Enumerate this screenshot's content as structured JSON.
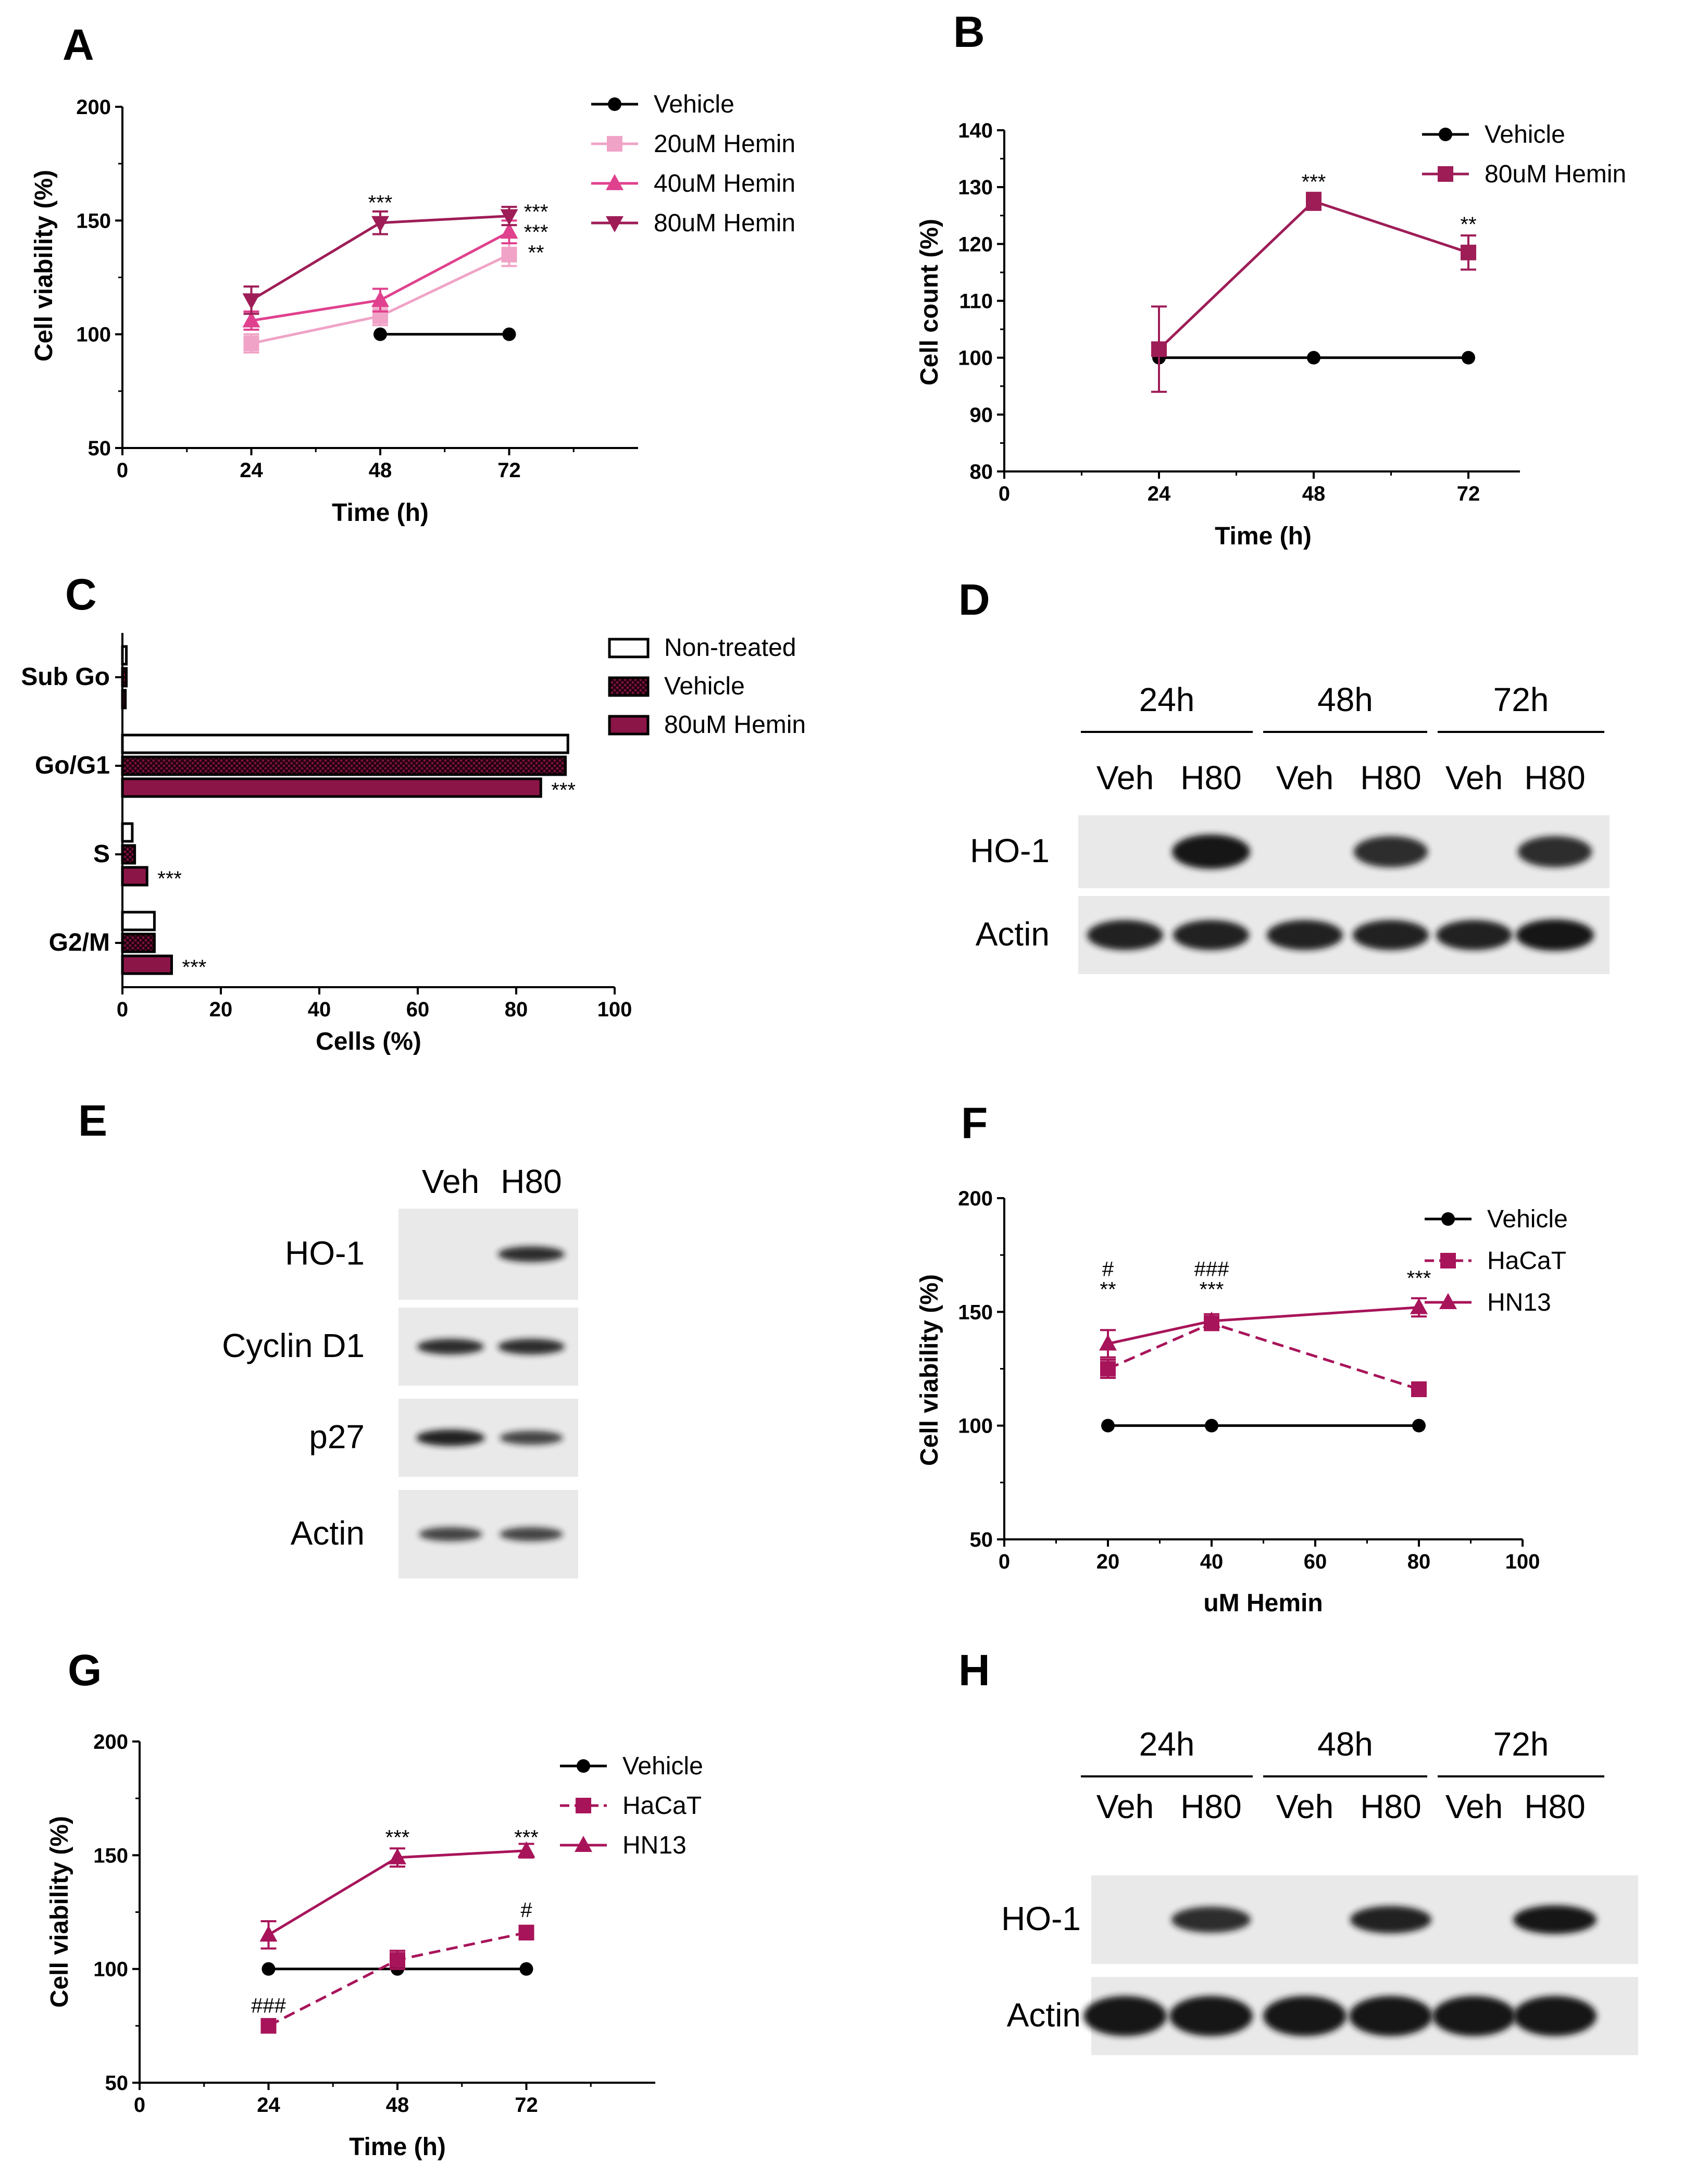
{
  "figure": {
    "panel_labels": [
      "A",
      "B",
      "C",
      "D",
      "E",
      "F",
      "G",
      "H"
    ]
  },
  "colors": {
    "vehicle": "#000000",
    "hemin_20": "#f0a3c6",
    "hemin_40": "#e0418e",
    "hemin_80": "#9e1d57",
    "hacat": "#a8145a",
    "hn13": "#a8145a",
    "blot_band": "#141414"
  },
  "chart_data": [
    {
      "panel": "A",
      "type": "line",
      "title": "",
      "xlabel": "Time (h)",
      "ylabel": "Cell viability (%)",
      "xlim": [
        0,
        96
      ],
      "ylim": [
        50,
        200
      ],
      "xticks": [
        0,
        24,
        48,
        72
      ],
      "yticks": [
        50,
        100,
        150,
        200
      ],
      "legend_position": "top-right",
      "series": [
        {
          "name": "Vehicle",
          "marker": "circle",
          "color": "#000000",
          "dashed": false,
          "x": [
            48,
            72
          ],
          "y": [
            100,
            100
          ],
          "err": [
            0,
            0
          ]
        },
        {
          "name": "20uM Hemin",
          "marker": "square",
          "color": "#f0a3c6",
          "dashed": false,
          "x": [
            24,
            48,
            72
          ],
          "y": [
            96,
            108,
            135
          ],
          "err": [
            4,
            4,
            5
          ]
        },
        {
          "name": "40uM Hemin",
          "marker": "triangle-up",
          "color": "#e0418e",
          "dashed": false,
          "x": [
            24,
            48,
            72
          ],
          "y": [
            106,
            115,
            145
          ],
          "err": [
            4,
            5,
            5
          ]
        },
        {
          "name": "80uM Hemin",
          "marker": "triangle-down",
          "color": "#9e1d57",
          "dashed": false,
          "x": [
            24,
            48,
            72
          ],
          "y": [
            115,
            149,
            152
          ],
          "err": [
            6,
            5,
            4
          ]
        }
      ],
      "annotations": [
        {
          "x": 48,
          "y": 158,
          "text": "***"
        },
        {
          "x": 77,
          "y": 154,
          "text": "***"
        },
        {
          "x": 77,
          "y": 145,
          "text": "***"
        },
        {
          "x": 77,
          "y": 136,
          "text": "**"
        }
      ]
    },
    {
      "panel": "B",
      "type": "line",
      "title": "",
      "xlabel": "Time (h)",
      "ylabel": "Cell count (%)",
      "xlim": [
        0,
        80
      ],
      "ylim": [
        80,
        140
      ],
      "xticks": [
        0,
        24,
        48,
        72
      ],
      "yticks": [
        80,
        90,
        100,
        110,
        120,
        130,
        140
      ],
      "legend_position": "top-right",
      "series": [
        {
          "name": "Vehicle",
          "marker": "circle",
          "color": "#000000",
          "dashed": false,
          "x": [
            24,
            48,
            72
          ],
          "y": [
            100,
            100,
            100
          ],
          "err": [
            0,
            0,
            0
          ]
        },
        {
          "name": "80uM Hemin",
          "marker": "square",
          "color": "#9e1d57",
          "dashed": false,
          "x": [
            24,
            48,
            72
          ],
          "y": [
            101.5,
            127.5,
            118.5
          ],
          "err": [
            7.5,
            1.5,
            3
          ]
        }
      ],
      "annotations": [
        {
          "x": 48,
          "y": 131,
          "text": "***"
        },
        {
          "x": 72,
          "y": 123.5,
          "text": "**"
        }
      ]
    },
    {
      "panel": "C",
      "type": "bar",
      "orientation": "horizontal",
      "title": "",
      "xlabel": "Cells (%)",
      "ylabel": "",
      "xlim": [
        0,
        100
      ],
      "xticks": [
        0,
        20,
        40,
        60,
        80,
        100
      ],
      "categories": [
        "Sub Go",
        "Go/G1",
        "S",
        "G2/M"
      ],
      "legend_position": "top-right",
      "series": [
        {
          "name": "Non-treated",
          "pattern": "white",
          "values": [
            0.8,
            90.5,
            2.0,
            6.5
          ]
        },
        {
          "name": "Vehicle",
          "pattern": "crosshatch",
          "values": [
            0.8,
            90.0,
            2.5,
            6.5
          ]
        },
        {
          "name": "80uM Hemin",
          "pattern": "solid",
          "values": [
            0.6,
            85.0,
            5.0,
            10.0
          ]
        }
      ],
      "annotations": [
        {
          "category": "Go/G1",
          "series": "80uM Hemin",
          "text": "***"
        },
        {
          "category": "S",
          "series": "80uM Hemin",
          "text": "***"
        },
        {
          "category": "G2/M",
          "series": "80uM Hemin",
          "text": "***"
        }
      ]
    },
    {
      "panel": "F",
      "type": "line",
      "title": "",
      "xlabel": "uM Hemin",
      "ylabel": "Cell viability (%)",
      "xlim": [
        0,
        100
      ],
      "ylim": [
        50,
        200
      ],
      "xticks": [
        0,
        20,
        40,
        60,
        80,
        100
      ],
      "yticks": [
        50,
        100,
        150,
        200
      ],
      "legend_position": "top-right",
      "series": [
        {
          "name": "Vehicle",
          "marker": "circle",
          "color": "#000000",
          "dashed": false,
          "x": [
            20,
            40,
            80
          ],
          "y": [
            100,
            100,
            100
          ],
          "err": [
            0,
            0,
            0
          ]
        },
        {
          "name": "HaCaT",
          "marker": "square",
          "color": "#a8145a",
          "dashed": true,
          "x": [
            20,
            40,
            80
          ],
          "y": [
            125,
            145,
            116
          ],
          "err": [
            4,
            3,
            3
          ]
        },
        {
          "name": "HN13",
          "marker": "triangle-up",
          "color": "#a8145a",
          "dashed": false,
          "x": [
            20,
            40,
            80
          ],
          "y": [
            136,
            146,
            152
          ],
          "err": [
            6,
            3,
            4
          ]
        }
      ],
      "annotations": [
        {
          "x": 20,
          "y": 169,
          "text": "#"
        },
        {
          "x": 20,
          "y": 160,
          "text": "**"
        },
        {
          "x": 40,
          "y": 169,
          "text": "###"
        },
        {
          "x": 40,
          "y": 160,
          "text": "***"
        },
        {
          "x": 80,
          "y": 165,
          "text": "***"
        }
      ]
    },
    {
      "panel": "G",
      "type": "line",
      "title": "",
      "xlabel": "Time (h)",
      "ylabel": "Cell viability (%)",
      "xlim": [
        0,
        96
      ],
      "ylim": [
        50,
        200
      ],
      "xticks": [
        0,
        24,
        48,
        72
      ],
      "yticks": [
        50,
        100,
        150,
        200
      ],
      "legend_position": "top-right",
      "series": [
        {
          "name": "Vehicle",
          "marker": "circle",
          "color": "#000000",
          "dashed": false,
          "x": [
            24,
            48,
            72
          ],
          "y": [
            100,
            100,
            100
          ],
          "err": [
            0,
            0,
            0
          ]
        },
        {
          "name": "HaCaT",
          "marker": "square",
          "color": "#a8145a",
          "dashed": true,
          "x": [
            24,
            48,
            72
          ],
          "y": [
            75,
            104,
            116
          ],
          "err": [
            2,
            4,
            3
          ]
        },
        {
          "name": "HN13",
          "marker": "triangle-up",
          "color": "#a8145a",
          "dashed": false,
          "x": [
            24,
            48,
            72
          ],
          "y": [
            115,
            149,
            152
          ],
          "err": [
            6,
            4,
            3
          ]
        }
      ],
      "annotations": [
        {
          "x": 48,
          "y": 158,
          "text": "***"
        },
        {
          "x": 72,
          "y": 158,
          "text": "***"
        },
        {
          "x": 72,
          "y": 126,
          "text": "#"
        },
        {
          "x": 24,
          "y": 84,
          "text": "###"
        }
      ]
    }
  ],
  "blots": {
    "D": {
      "timepoints": [
        "24h",
        "48h",
        "72h"
      ],
      "lanes": [
        "Veh",
        "H80",
        "Veh",
        "H80",
        "Veh",
        "H80"
      ],
      "rows": [
        {
          "label": "HO-1",
          "intensity": [
            0,
            1,
            0,
            0.8,
            0,
            0.8
          ]
        },
        {
          "label": "Actin",
          "intensity": [
            0.9,
            0.9,
            0.9,
            0.9,
            0.9,
            1
          ]
        }
      ]
    },
    "E": {
      "lanes": [
        "Veh",
        "H80"
      ],
      "rows": [
        {
          "label": "HO-1",
          "intensity": [
            0,
            0.8
          ]
        },
        {
          "label": "Cyclin D1",
          "intensity": [
            0.8,
            0.8
          ]
        },
        {
          "label": "p27",
          "intensity": [
            0.9,
            0.6
          ]
        },
        {
          "label": "Actin",
          "intensity": [
            0.6,
            0.6
          ]
        }
      ]
    },
    "H": {
      "timepoints": [
        "24h",
        "48h",
        "72h"
      ],
      "lanes": [
        "Veh",
        "H80",
        "Veh",
        "H80",
        "Veh",
        "H80"
      ],
      "rows": [
        {
          "label": "HO-1",
          "intensity": [
            0,
            0.8,
            0,
            0.9,
            0,
            1
          ]
        },
        {
          "label": "Actin",
          "intensity": [
            1,
            1,
            1,
            1,
            1,
            1
          ]
        }
      ]
    }
  }
}
